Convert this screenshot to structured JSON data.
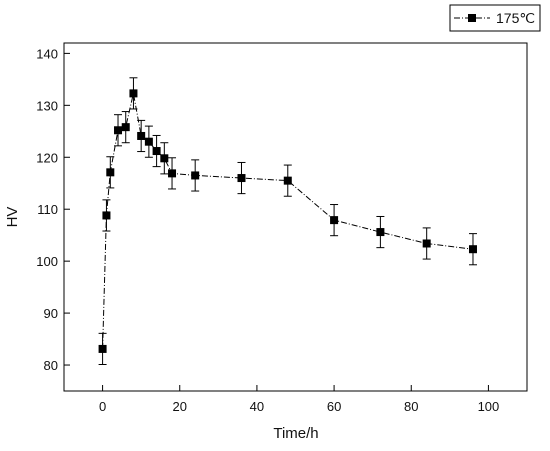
{
  "chart_data": {
    "type": "line",
    "xlabel": "Time/h",
    "ylabel": "HV",
    "xlim": [
      -10,
      110
    ],
    "ylim": [
      75,
      142
    ],
    "xticks": [
      0,
      20,
      40,
      60,
      80,
      100
    ],
    "yticks": [
      80,
      90,
      100,
      110,
      120,
      130,
      140
    ],
    "grid": false,
    "legend_position": "top-right",
    "series": [
      {
        "name": "175℃",
        "color": "#000000",
        "marker": "square",
        "line_style": "dash-dot",
        "x": [
          0,
          1,
          2,
          4,
          6,
          8,
          10,
          12,
          14,
          16,
          18,
          24,
          36,
          48,
          60,
          72,
          84,
          96
        ],
        "y": [
          83.1,
          108.8,
          117.1,
          125.2,
          125.8,
          132.3,
          124.1,
          123.0,
          121.2,
          119.8,
          116.9,
          116.5,
          116.0,
          115.5,
          107.9,
          105.6,
          103.4,
          102.3
        ],
        "err": [
          3.0,
          3.0,
          3.0,
          3.0,
          3.0,
          3.0,
          3.0,
          3.0,
          3.0,
          3.0,
          3.0,
          3.0,
          3.0,
          3.0,
          3.0,
          3.0,
          3.0,
          3.0
        ]
      }
    ]
  }
}
